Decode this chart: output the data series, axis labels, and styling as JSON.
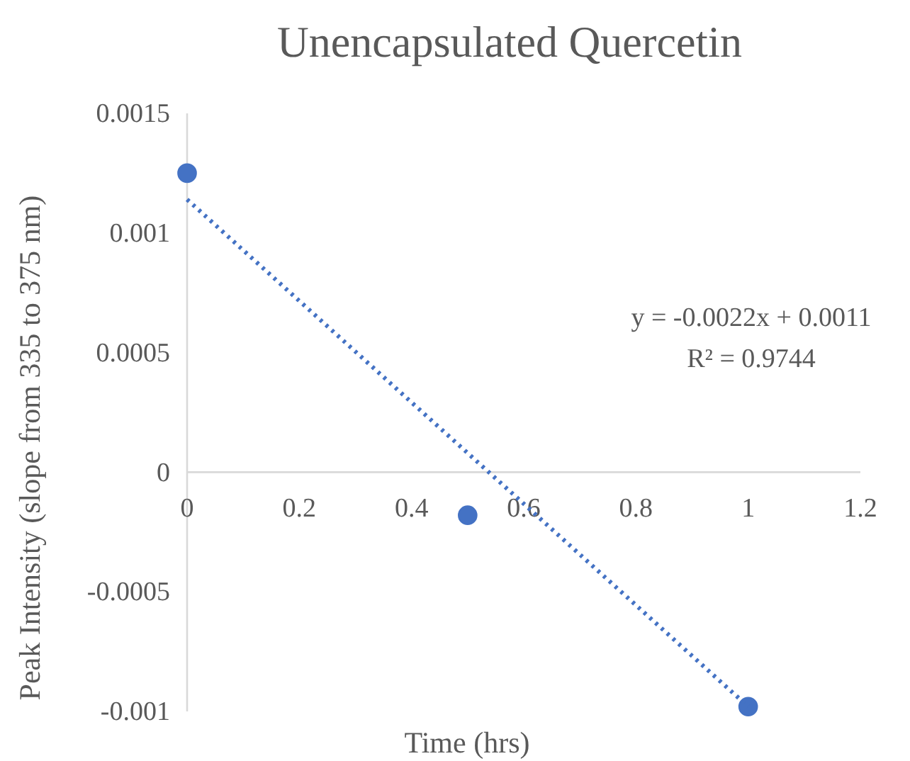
{
  "chart_data": {
    "type": "scatter",
    "title": "Unencapsulated Quercetin",
    "xlabel": "Time (hrs)",
    "ylabel": "Peak Intensity (slope from 335 to 375 nm)",
    "x": [
      0,
      0.5,
      1
    ],
    "series": [
      {
        "color": "#4472c4",
        "marker": "circle",
        "values": [
          0.00125,
          -0.00018,
          -0.00098
        ]
      },
      {
        "type": "line",
        "color": "#4472c4",
        "line_style": "dotted",
        "marker": "none",
        "x": [
          0,
          1
        ],
        "values": [
          0.00114,
          -0.00098
        ]
      }
    ],
    "xlim": [
      0,
      1.2
    ],
    "xticks": [
      0,
      0.2,
      0.4,
      0.6,
      0.8,
      1,
      1.2
    ],
    "ylim": [
      -0.001,
      0.0015
    ],
    "yticks": [
      -0.001,
      -0.0005,
      0,
      0.0005,
      0.001,
      0.0015
    ],
    "grid": false,
    "annotations": [
      "y = -0.0022x + 0.0011",
      "R² = 0.9744"
    ]
  }
}
